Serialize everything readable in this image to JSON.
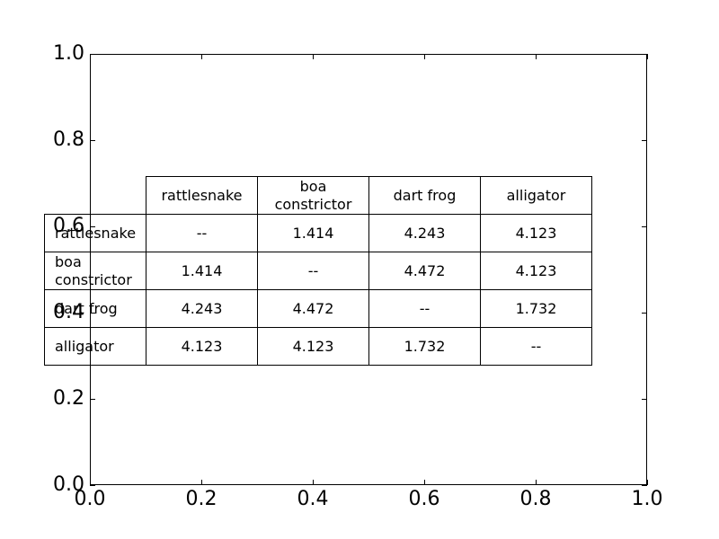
{
  "chart_data": {
    "type": "table",
    "xlim": [
      0.0,
      1.0
    ],
    "ylim": [
      0.0,
      1.0
    ],
    "x_ticks": [
      "0.0",
      "0.2",
      "0.4",
      "0.6",
      "0.8",
      "1.0"
    ],
    "y_ticks": [
      "0.0",
      "0.2",
      "0.4",
      "0.6",
      "0.8",
      "1.0"
    ],
    "table": {
      "columns": [
        "rattlesnake",
        "boa\nconstrictor",
        "dart frog",
        "alligator"
      ],
      "rows": [
        "rattlesnake",
        "boa\nconstrictor",
        "dart frog",
        "alligator"
      ],
      "cells": [
        [
          "--",
          "1.414",
          "4.243",
          "4.123"
        ],
        [
          "1.414",
          "--",
          "4.472",
          "4.123"
        ],
        [
          "4.243",
          "4.472",
          "--",
          "1.732"
        ],
        [
          "4.123",
          "4.123",
          "1.732",
          "--"
        ]
      ]
    }
  }
}
